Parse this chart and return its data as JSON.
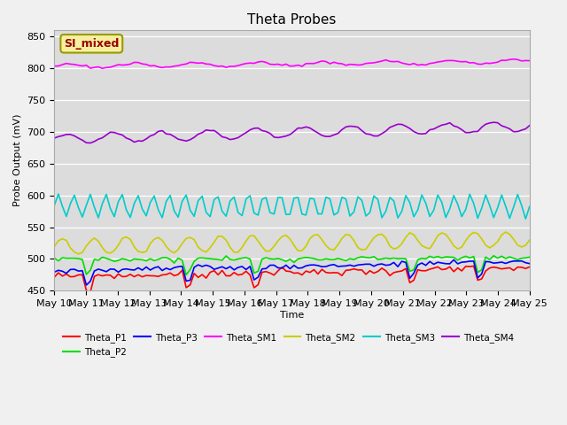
{
  "title": "Theta Probes",
  "xlabel": "Time",
  "ylabel": "Probe Output (mV)",
  "ylim": [
    450,
    860
  ],
  "yticks": [
    450,
    500,
    550,
    600,
    650,
    700,
    750,
    800,
    850
  ],
  "background_color": "#dcdcdc",
  "fig_facecolor": "#f0f0f0",
  "legend_label": "SI_mixed",
  "legend_label_color": "#990000",
  "legend_label_bg": "#f5f0a0",
  "legend_label_edge": "#999900",
  "series": {
    "Theta_P1": {
      "color": "#ff0000",
      "base": 472,
      "amp": 0,
      "trend": 0.9,
      "osc_amp": 0,
      "osc_period": 1.0,
      "noise": 3,
      "spikes": [
        1,
        4.2,
        6.3,
        11.2,
        13.3
      ]
    },
    "Theta_P2": {
      "color": "#00dd00",
      "base": 499,
      "amp": 0,
      "trend": 0.2,
      "osc_amp": 0,
      "osc_period": 1.0,
      "noise": 2,
      "spikes": [
        1,
        4.2,
        6.3,
        11.2,
        13.3
      ]
    },
    "Theta_P3": {
      "color": "#0000ff",
      "base": 481,
      "amp": 0,
      "trend": 1.0,
      "osc_amp": 0,
      "osc_period": 1.0,
      "noise": 2,
      "spikes": [
        1,
        4.2,
        6.3,
        11.2,
        13.3
      ]
    },
    "Theta_SM1": {
      "color": "#ff00ff",
      "base": 803,
      "amp": 0,
      "trend": 0.5,
      "osc_amp": 3,
      "osc_period": 2.0,
      "noise": 1,
      "spikes": []
    },
    "Theta_SM2": {
      "color": "#cccc00",
      "base": 519,
      "amp": 0,
      "trend": 0.8,
      "osc_amp": 13,
      "osc_period": 1.0,
      "noise": 1,
      "spikes": []
    },
    "Theta_SM3": {
      "color": "#00cccc",
      "base": 583,
      "amp": 0,
      "trend": 0.0,
      "osc_amp": 18,
      "osc_period": 0.5,
      "noise": 1,
      "spikes": []
    },
    "Theta_SM4": {
      "color": "#9900cc",
      "base": 688,
      "amp": 0,
      "trend": 1.4,
      "osc_amp": 8,
      "osc_period": 1.5,
      "noise": 1,
      "spikes": []
    }
  },
  "legend_order": [
    "Theta_P1",
    "Theta_P2",
    "Theta_P3",
    "Theta_SM1",
    "Theta_SM2",
    "Theta_SM3",
    "Theta_SM4"
  ]
}
